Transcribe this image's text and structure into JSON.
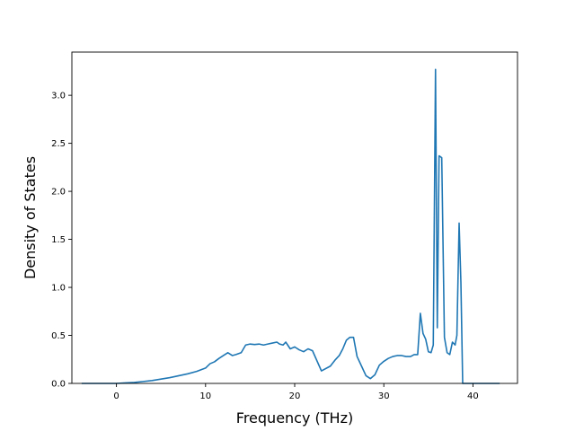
{
  "chart_data": {
    "type": "line",
    "xlabel": "Frequency (THz)",
    "ylabel": "Density of States",
    "xlim": [
      -5,
      45
    ],
    "ylim": [
      0,
      3.45
    ],
    "xticks": [
      0,
      10,
      20,
      30,
      40
    ],
    "yticks": [
      0.0,
      0.5,
      1.0,
      1.5,
      2.0,
      2.5,
      3.0
    ],
    "xtick_labels": [
      "0",
      "10",
      "20",
      "30",
      "40"
    ],
    "ytick_labels": [
      "0.0",
      "0.5",
      "1.0",
      "1.5",
      "2.0",
      "2.5",
      "3.0"
    ],
    "grid": false,
    "legend": "none",
    "series": [
      {
        "color": "#1f77b4",
        "x": [
          -3.9,
          0,
          1,
          2,
          3,
          4,
          5,
          6,
          7,
          8,
          9,
          10,
          10.5,
          11,
          11.5,
          12,
          12.5,
          13,
          13.4,
          14,
          14.5,
          15,
          15.5,
          16,
          16.5,
          17,
          17.5,
          18,
          18.3,
          18.7,
          19,
          19.5,
          20,
          20.5,
          21,
          21.5,
          22,
          23,
          24,
          24.5,
          25,
          25.4,
          25.8,
          26.2,
          26.6,
          27,
          27.5,
          28,
          28.5,
          29,
          29.5,
          30,
          30.5,
          31,
          31.5,
          32,
          32.5,
          33,
          33.4,
          33.8,
          34.1,
          34.4,
          34.7,
          35.0,
          35.3,
          35.55,
          35.8,
          36.0,
          36.2,
          36.5,
          36.8,
          37.1,
          37.4,
          37.7,
          38.0,
          38.2,
          38.45,
          38.65,
          38.85,
          39.05,
          39.3,
          40,
          43
        ],
        "y": [
          0,
          0,
          0.005,
          0.01,
          0.02,
          0.03,
          0.045,
          0.06,
          0.08,
          0.1,
          0.125,
          0.16,
          0.205,
          0.225,
          0.26,
          0.29,
          0.32,
          0.29,
          0.3,
          0.32,
          0.4,
          0.41,
          0.405,
          0.41,
          0.4,
          0.41,
          0.42,
          0.43,
          0.41,
          0.4,
          0.43,
          0.36,
          0.38,
          0.35,
          0.33,
          0.36,
          0.34,
          0.13,
          0.18,
          0.24,
          0.29,
          0.36,
          0.45,
          0.48,
          0.48,
          0.28,
          0.18,
          0.08,
          0.05,
          0.09,
          0.19,
          0.23,
          0.26,
          0.28,
          0.29,
          0.29,
          0.28,
          0.28,
          0.3,
          0.3,
          0.73,
          0.52,
          0.46,
          0.33,
          0.32,
          0.4,
          3.27,
          0.58,
          2.37,
          2.35,
          0.48,
          0.32,
          0.3,
          0.43,
          0.4,
          0.5,
          1.67,
          1.05,
          0.0,
          0.0,
          0.0,
          0.0,
          0.0
        ]
      }
    ]
  }
}
